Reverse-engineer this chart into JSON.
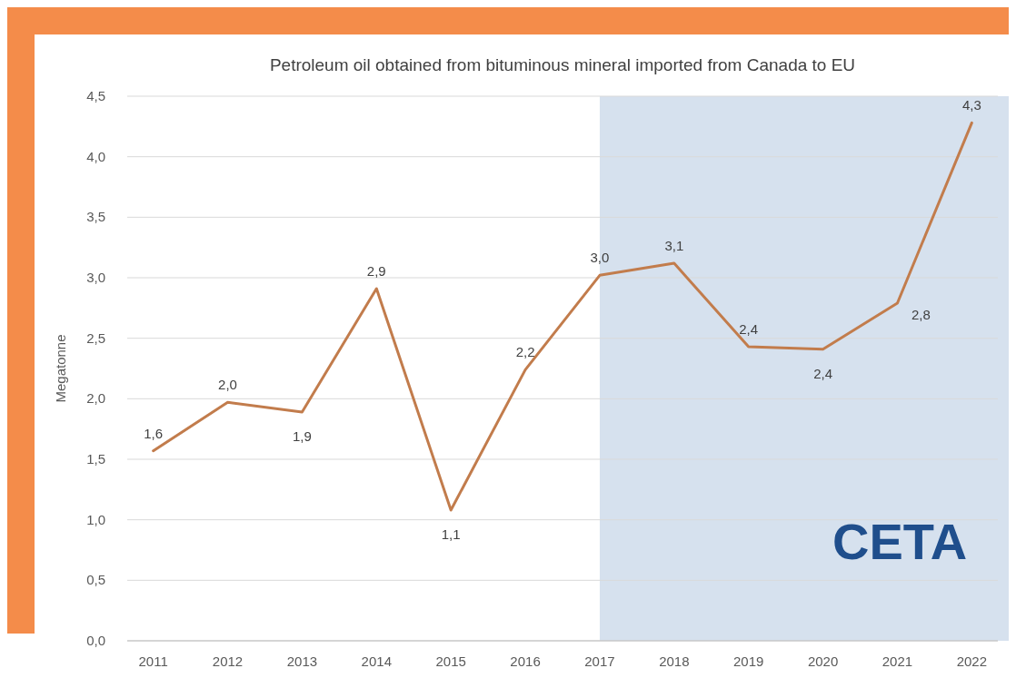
{
  "chart_data": {
    "type": "line",
    "title": "Petroleum oil obtained from bituminous mineral imported from Canada to EU",
    "ylabel": "Megatonne",
    "categories": [
      "2011",
      "2012",
      "2013",
      "2014",
      "2015",
      "2016",
      "2017",
      "2018",
      "2019",
      "2020",
      "2021",
      "2022"
    ],
    "series": [
      {
        "color": "#c27c4c",
        "values": [
          1.57,
          1.97,
          1.89,
          2.91,
          1.08,
          2.24,
          3.02,
          3.12,
          2.43,
          2.41,
          2.79,
          4.28
        ],
        "value_labels": [
          "1,6",
          "2,0",
          "1,9",
          "2,9",
          "1,1",
          "2,2",
          "3,0",
          "3,1",
          "2,4",
          "2,4",
          "2,8",
          "4,3"
        ]
      }
    ],
    "ylim": [
      0,
      4.5
    ],
    "yticks": [
      {
        "value": 0,
        "label": "0,0"
      },
      {
        "value": 0.5,
        "label": "0,5"
      },
      {
        "value": 1,
        "label": "1,0"
      },
      {
        "value": 1.5,
        "label": "1,5"
      },
      {
        "value": 2,
        "label": "2,0"
      },
      {
        "value": 2.5,
        "label": "2,5"
      },
      {
        "value": 3,
        "label": "3,0"
      },
      {
        "value": 3.5,
        "label": "3,5"
      },
      {
        "value": 4,
        "label": "4,0"
      },
      {
        "value": 4.5,
        "label": "4,5"
      }
    ],
    "grid": "y",
    "marker": "none",
    "line_style": "solid",
    "bands": [
      {
        "axis": "x",
        "from": "2017",
        "to": "2022",
        "label": "CETA",
        "color": "#d6e1ee"
      }
    ]
  }
}
